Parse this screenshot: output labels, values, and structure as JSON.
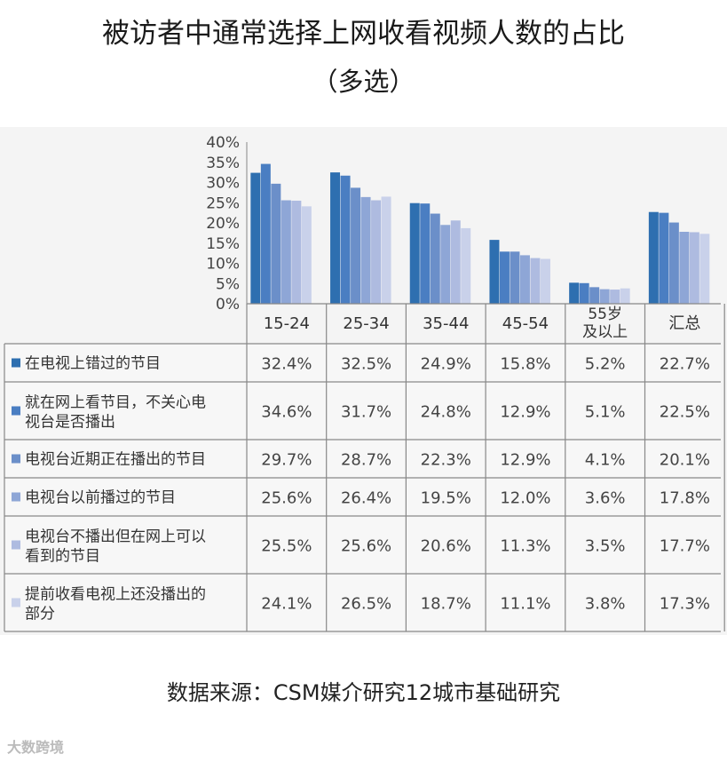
{
  "title": "被访者中通常选择上网收看视频人数的占比",
  "subtitle": "（多选）",
  "source": "数据来源：CSM媒介研究12城市基础研究",
  "watermark": "大数跨境",
  "colors": [
    "#2e6fb0",
    "#4a7ec2",
    "#6b8fc9",
    "#8ea6d6",
    "#aebbe0",
    "#c9d1ea"
  ],
  "chart_data": {
    "type": "bar",
    "categories": [
      "15-24",
      "25-34",
      "35-44",
      "45-54",
      "55岁\n及以上",
      "汇总"
    ],
    "ylim": [
      0,
      40
    ],
    "yticks": [
      "0%",
      "5%",
      "10%",
      "15%",
      "20%",
      "25%",
      "30%",
      "35%",
      "40%"
    ],
    "series": [
      {
        "name": "在电视上错过的节目",
        "values": [
          32.4,
          32.5,
          24.9,
          15.8,
          5.2,
          22.7
        ],
        "labels": [
          "32.4%",
          "32.5%",
          "24.9%",
          "15.8%",
          "5.2%",
          "22.7%"
        ]
      },
      {
        "name": "就在网上看节目，不关心电视台是否播出",
        "values": [
          34.6,
          31.7,
          24.8,
          12.9,
          5.1,
          22.5
        ],
        "labels": [
          "34.6%",
          "31.7%",
          "24.8%",
          "12.9%",
          "5.1%",
          "22.5%"
        ]
      },
      {
        "name": "电视台近期正在播出的节目",
        "values": [
          29.7,
          28.7,
          22.3,
          12.9,
          4.1,
          20.1
        ],
        "labels": [
          "29.7%",
          "28.7%",
          "22.3%",
          "12.9%",
          "4.1%",
          "20.1%"
        ]
      },
      {
        "name": "电视台以前播过的节目",
        "values": [
          25.6,
          26.4,
          19.5,
          12.0,
          3.6,
          17.8
        ],
        "labels": [
          "25.6%",
          "26.4%",
          "19.5%",
          "12.0%",
          "3.6%",
          "17.8%"
        ]
      },
      {
        "name": "电视台不播出但在网上可以看到的节目",
        "values": [
          25.5,
          25.6,
          20.6,
          11.3,
          3.5,
          17.7
        ],
        "labels": [
          "25.5%",
          "25.6%",
          "20.6%",
          "11.3%",
          "3.5%",
          "17.7%"
        ]
      },
      {
        "name": "提前收看电视上还没播出的部分",
        "values": [
          24.1,
          26.5,
          18.7,
          11.1,
          3.8,
          17.3
        ],
        "labels": [
          "24.1%",
          "26.5%",
          "18.7%",
          "11.1%",
          "3.8%",
          "17.3%"
        ]
      }
    ],
    "legend_lines": [
      [
        "在电视上错过的节目"
      ],
      [
        "就在网上看节目，不关心电",
        "视台是否播出"
      ],
      [
        "电视台近期正在播出的节目"
      ],
      [
        "电视台以前播过的节目"
      ],
      [
        "电视台不播出但在网上可以",
        "看到的节目"
      ],
      [
        "提前收看电视上还没播出的",
        "部分"
      ]
    ],
    "legend": "data-table"
  }
}
